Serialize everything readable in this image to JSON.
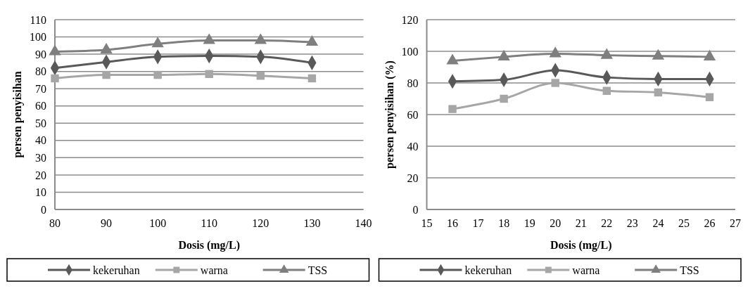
{
  "chart_data": [
    {
      "type": "line",
      "xlabel": "Dosis (mg/L)",
      "ylabel": "persen penyisihan",
      "x": [
        80,
        90,
        100,
        110,
        120,
        130
      ],
      "xlim": [
        80,
        140
      ],
      "xticks": [
        80,
        90,
        100,
        110,
        120,
        130,
        140
      ],
      "ylim": [
        0,
        110
      ],
      "yticks": [
        0,
        10,
        20,
        30,
        40,
        50,
        60,
        70,
        80,
        90,
        100,
        110
      ],
      "grid": "y",
      "legend": "bottom",
      "series": [
        {
          "name": "kekeruhan",
          "color": "#595959",
          "marker": "diamond",
          "values": [
            82,
            85.5,
            88.5,
            89,
            88.5,
            85
          ]
        },
        {
          "name": "warna",
          "color": "#a6a6a6",
          "marker": "square",
          "values": [
            76,
            78,
            78,
            78.5,
            77.5,
            76
          ]
        },
        {
          "name": "TSS",
          "color": "#7f7f7f",
          "marker": "triangle",
          "values": [
            91.5,
            92.5,
            96,
            98,
            98,
            97
          ]
        }
      ]
    },
    {
      "type": "line",
      "xlabel": "Dosis (mg/L)",
      "ylabel": "persen penyisihan (%)",
      "x": [
        16,
        18,
        20,
        22,
        24,
        26
      ],
      "xlim": [
        15,
        27
      ],
      "xticks": [
        15,
        16,
        17,
        18,
        19,
        20,
        21,
        22,
        23,
        24,
        25,
        26,
        27
      ],
      "ylim": [
        0,
        120
      ],
      "yticks": [
        0,
        20,
        40,
        60,
        80,
        100,
        120
      ],
      "grid": "y",
      "legend": "bottom",
      "series": [
        {
          "name": "kekeruhan",
          "color": "#595959",
          "marker": "diamond",
          "values": [
            81,
            82,
            88,
            83.5,
            82.5,
            82.5
          ]
        },
        {
          "name": "warna",
          "color": "#a6a6a6",
          "marker": "square",
          "values": [
            63.5,
            70,
            80,
            75,
            74,
            71
          ]
        },
        {
          "name": "TSS",
          "color": "#7f7f7f",
          "marker": "triangle",
          "values": [
            94,
            96.5,
            98.5,
            97.5,
            97,
            96.5
          ]
        }
      ]
    }
  ]
}
